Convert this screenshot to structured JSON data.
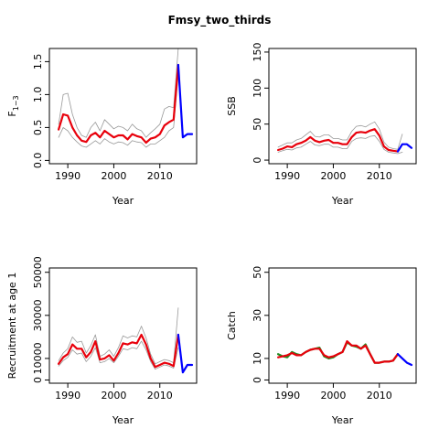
{
  "title": "Fmsy_two_thirds",
  "chart_data": [
    {
      "type": "line",
      "ylabel": "F",
      "ylabel_sub": "1−3",
      "xlabel": "Year",
      "xlim": [
        1986,
        2018
      ],
      "ylim": [
        -0.05,
        1.7
      ],
      "xticks": [
        "1990",
        "2000",
        "2010"
      ],
      "yticks": [
        "0.0",
        "0.5",
        "1.0",
        "1.5"
      ],
      "series": [
        {
          "role": "upper",
          "color": "#999999",
          "x": [
            1988,
            1989,
            1990,
            1991,
            1992,
            1993,
            1994,
            1995,
            1996,
            1997,
            1998,
            1999,
            2000,
            2001,
            2002,
            2003,
            2004,
            2005,
            2006,
            2007,
            2008,
            2009,
            2010,
            2011,
            2012,
            2013,
            2014
          ],
          "y": [
            0.55,
            1.0,
            1.02,
            0.7,
            0.5,
            0.38,
            0.35,
            0.5,
            0.58,
            0.45,
            0.62,
            0.55,
            0.48,
            0.52,
            0.5,
            0.45,
            0.55,
            0.48,
            0.45,
            0.35,
            0.42,
            0.48,
            0.55,
            0.78,
            0.82,
            0.8,
            1.7
          ]
        },
        {
          "role": "lower",
          "color": "#999999",
          "x": [
            1988,
            1989,
            1990,
            1991,
            1992,
            1993,
            1994,
            1995,
            1996,
            1997,
            1998,
            1999,
            2000,
            2001,
            2002,
            2003,
            2004,
            2005,
            2006,
            2007,
            2008,
            2009,
            2010,
            2011,
            2012,
            2013,
            2014
          ],
          "y": [
            0.35,
            0.5,
            0.45,
            0.35,
            0.28,
            0.22,
            0.2,
            0.25,
            0.3,
            0.25,
            0.33,
            0.28,
            0.25,
            0.28,
            0.27,
            0.23,
            0.3,
            0.28,
            0.27,
            0.2,
            0.25,
            0.25,
            0.3,
            0.35,
            0.45,
            0.5,
            1.3
          ]
        },
        {
          "role": "estimate",
          "color": "#e8000b",
          "x": [
            1988,
            1989,
            1990,
            1991,
            1992,
            1993,
            1994,
            1995,
            1996,
            1997,
            1998,
            1999,
            2000,
            2001,
            2002,
            2003,
            2004,
            2005,
            2006,
            2007,
            2008,
            2009,
            2010,
            2011,
            2012,
            2013,
            2014
          ],
          "y": [
            0.47,
            0.7,
            0.68,
            0.5,
            0.38,
            0.3,
            0.28,
            0.38,
            0.42,
            0.35,
            0.45,
            0.4,
            0.35,
            0.38,
            0.38,
            0.32,
            0.4,
            0.37,
            0.35,
            0.27,
            0.33,
            0.35,
            0.4,
            0.53,
            0.58,
            0.62,
            1.45
          ]
        },
        {
          "role": "projection",
          "color": "#0000ff",
          "x": [
            2014,
            2015,
            2016,
            2017
          ],
          "y": [
            1.45,
            0.35,
            0.4,
            0.4
          ]
        }
      ]
    },
    {
      "type": "line",
      "ylabel": "SSB",
      "xlabel": "Year",
      "xlim": [
        1986,
        2018
      ],
      "ylim": [
        -5,
        155
      ],
      "xticks": [
        "1990",
        "2000",
        "2010"
      ],
      "yticks": [
        "0",
        "50",
        "100",
        "150"
      ],
      "series": [
        {
          "role": "upper",
          "color": "#999999",
          "x": [
            1988,
            1989,
            1990,
            1991,
            1992,
            1993,
            1994,
            1995,
            1996,
            1997,
            1998,
            1999,
            2000,
            2001,
            2002,
            2003,
            2004,
            2005,
            2006,
            2007,
            2008,
            2009,
            2010,
            2011,
            2012,
            2013,
            2014,
            2015
          ],
          "y": [
            18,
            21,
            24,
            24,
            28,
            30,
            35,
            40,
            33,
            32,
            35,
            35,
            30,
            30,
            28,
            28,
            40,
            47,
            48,
            46,
            50,
            53,
            43,
            25,
            18,
            16,
            15,
            36
          ]
        },
        {
          "role": "lower",
          "color": "#999999",
          "x": [
            1988,
            1989,
            1990,
            1991,
            1992,
            1993,
            1994,
            1995,
            1996,
            1997,
            1998,
            1999,
            2000,
            2001,
            2002,
            2003,
            2004,
            2005,
            2006,
            2007,
            2008,
            2009,
            2010,
            2011,
            2012,
            2013,
            2014,
            2015
          ],
          "y": [
            11,
            13,
            15,
            14,
            17,
            18,
            22,
            26,
            21,
            20,
            22,
            22,
            18,
            18,
            16,
            16,
            26,
            30,
            31,
            30,
            33,
            34,
            26,
            15,
            11,
            10,
            9,
            11
          ]
        },
        {
          "role": "estimate",
          "color": "#e8000b",
          "x": [
            1988,
            1989,
            1990,
            1991,
            1992,
            1993,
            1994,
            1995,
            1996,
            1997,
            1998,
            1999,
            2000,
            2001,
            2002,
            2003,
            2004,
            2005,
            2006,
            2007,
            2008,
            2009,
            2010,
            2011,
            2012,
            2013,
            2014
          ],
          "y": [
            14,
            16,
            19,
            18,
            22,
            24,
            27,
            32,
            27,
            25,
            27,
            28,
            24,
            24,
            22,
            22,
            32,
            38,
            39,
            38,
            41,
            43,
            34,
            19,
            14,
            13,
            12
          ]
        },
        {
          "role": "projection",
          "color": "#0000ff",
          "x": [
            2014,
            2015,
            2016,
            2017
          ],
          "y": [
            12,
            22,
            22,
            17
          ]
        }
      ]
    },
    {
      "type": "line",
      "ylabel": "Recruitment at age 1",
      "xlabel": "Year",
      "xlim": [
        1986,
        2018
      ],
      "ylim": [
        -1500,
        52000
      ],
      "xticks": [
        "1990",
        "2000",
        "2010"
      ],
      "yticks": [
        "0",
        "10000",
        "30000",
        "50000"
      ],
      "series": [
        {
          "role": "upper",
          "color": "#999999",
          "x": [
            1988,
            1989,
            1990,
            1991,
            1992,
            1993,
            1994,
            1995,
            1996,
            1997,
            1998,
            1999,
            2000,
            2001,
            2002,
            2003,
            2004,
            2005,
            2006,
            2007,
            2008,
            2009,
            2010,
            2011,
            2012,
            2013,
            2014
          ],
          "y": [
            9000,
            12500,
            14500,
            20000,
            17500,
            18000,
            12500,
            16000,
            21000,
            11000,
            12000,
            14000,
            11000,
            15000,
            20500,
            19500,
            20500,
            20000,
            25000,
            19500,
            12000,
            7500,
            8500,
            9500,
            9000,
            8000,
            33500
          ]
        },
        {
          "role": "lower",
          "color": "#999999",
          "x": [
            1988,
            1989,
            1990,
            1991,
            1992,
            1993,
            1994,
            1995,
            1996,
            1997,
            1998,
            1999,
            2000,
            2001,
            2002,
            2003,
            2004,
            2005,
            2006,
            2007,
            2008,
            2009,
            2010,
            2011,
            2012,
            2013,
            2014
          ],
          "y": [
            6500,
            9000,
            10500,
            14000,
            12000,
            12500,
            8500,
            11000,
            15000,
            8000,
            8500,
            10000,
            8000,
            11000,
            14500,
            14000,
            15000,
            14500,
            18000,
            14000,
            8500,
            5000,
            6000,
            7000,
            6500,
            5500,
            15000
          ]
        },
        {
          "role": "estimate",
          "color": "#e8000b",
          "x": [
            1988,
            1989,
            1990,
            1991,
            1992,
            1993,
            1994,
            1995,
            1996,
            1997,
            1998,
            1999,
            2000,
            2001,
            2002,
            2003,
            2004,
            2005,
            2006,
            2007,
            2008,
            2009,
            2010,
            2011,
            2012,
            2013,
            2014
          ],
          "y": [
            7500,
            10500,
            12000,
            16500,
            14500,
            14500,
            10500,
            13000,
            18000,
            9500,
            10000,
            11500,
            9000,
            12500,
            17000,
            16500,
            17500,
            17000,
            21000,
            16500,
            10000,
            6000,
            7000,
            8000,
            7500,
            6500,
            21000
          ]
        },
        {
          "role": "projection",
          "color": "#0000ff",
          "x": [
            2014,
            2015,
            2016,
            2017
          ],
          "y": [
            21000,
            3500,
            7000,
            7000
          ]
        }
      ]
    },
    {
      "type": "line",
      "ylabel": "Catch",
      "xlabel": "Year",
      "xlim": [
        1986,
        2018
      ],
      "ylim": [
        -1.5,
        52
      ],
      "xticks": [
        "1990",
        "2000",
        "2010"
      ],
      "yticks": [
        "0",
        "10",
        "30",
        "50"
      ],
      "series": [
        {
          "role": "observed",
          "color": "#228b22",
          "x": [
            1988,
            1989,
            1990,
            1991,
            1992,
            1993,
            1994,
            1995,
            1996,
            1997,
            1998,
            1999,
            2000,
            2001,
            2002,
            2003,
            2004,
            2005,
            2006,
            2007,
            2008,
            2009,
            2010,
            2011,
            2012,
            2013,
            2014
          ],
          "y": [
            12,
            11,
            10.5,
            13,
            12,
            11.5,
            13,
            14,
            14.5,
            15,
            11,
            10,
            10.5,
            12,
            13,
            17.5,
            16,
            15.5,
            14.5,
            16.5,
            12,
            8,
            8,
            8.5,
            8.5,
            9,
            12
          ]
        },
        {
          "role": "estimate",
          "color": "#e8000b",
          "x": [
            1988,
            1989,
            1990,
            1991,
            1992,
            1993,
            1994,
            1995,
            1996,
            1997,
            1998,
            1999,
            2000,
            2001,
            2002,
            2003,
            2004,
            2005,
            2006,
            2007,
            2008,
            2009,
            2010,
            2011,
            2012,
            2013,
            2014
          ],
          "y": [
            10.5,
            11,
            11.5,
            12.5,
            11.5,
            11.5,
            13,
            14,
            14.5,
            14.5,
            11.5,
            10.5,
            11,
            12,
            13,
            18,
            16,
            16,
            14.5,
            16,
            12,
            8,
            8,
            8.5,
            8.5,
            9,
            12
          ]
        },
        {
          "role": "projection",
          "color": "#0000ff",
          "x": [
            2014,
            2015,
            2016,
            2017
          ],
          "y": [
            12,
            10,
            8,
            7
          ]
        }
      ]
    }
  ]
}
